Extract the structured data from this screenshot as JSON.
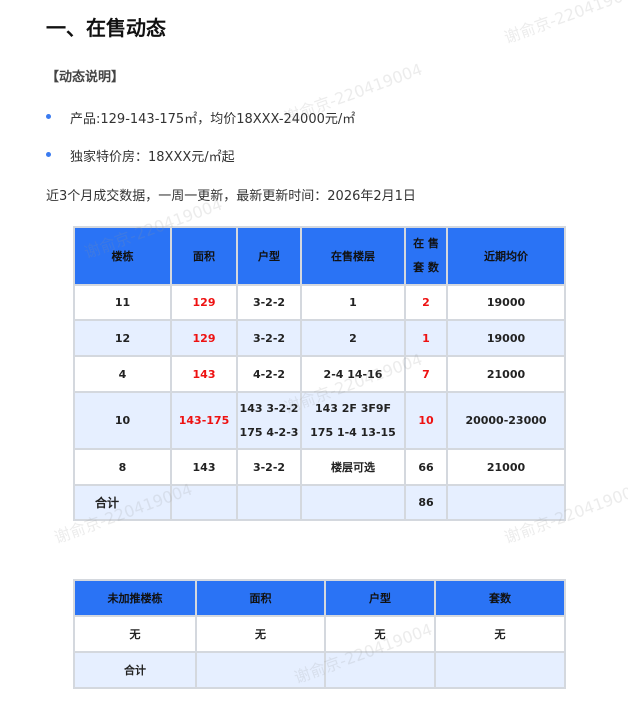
{
  "title": "一、在售动态",
  "note_label": "【动态说明】",
  "bullets": [
    "产品:129-143-175㎡，均价18XXX-24000元/㎡",
    "独家特价房：18XXX元/㎡起"
  ],
  "update_text": "近3个月成交数据，一周一更新，最新更新时间：2026年2月1日",
  "watermark": "谢俞京-220419004",
  "colors": {
    "header_bg": "#2a73f5",
    "alt_row_bg": "#e6efff",
    "highlight": "#ee1111",
    "bullet": "#3a7bf0"
  },
  "sale_table": {
    "headers": [
      "楼栋",
      "面积",
      "户型",
      "在售楼层",
      "在 售\n套 数",
      "近期均价"
    ],
    "rows": [
      {
        "building": "11",
        "area": "129",
        "layout": "3-2-2",
        "floors": "1",
        "units": "2",
        "price": "19000",
        "highlight": true
      },
      {
        "building": "12",
        "area": "129",
        "layout": "3-2-2",
        "floors": "2",
        "units": "1",
        "price": "19000",
        "highlight": true
      },
      {
        "building": "4",
        "area": "143",
        "layout": "4-2-2",
        "floors": "2-4  14-16",
        "units": "7",
        "price": "21000",
        "highlight": true
      },
      {
        "building": "10",
        "area": "143-175",
        "layout": [
          "143 3-2-2",
          "175 4-2-3"
        ],
        "floors": [
          "143 2F 3F9F",
          "175 1-4  13-15"
        ],
        "units": "10",
        "price": "20000-23000",
        "highlight": true
      },
      {
        "building": "8",
        "area": "143",
        "layout": "3-2-2",
        "floors": "楼层可选",
        "units": "66",
        "price": "21000",
        "highlight": false
      }
    ],
    "total": {
      "label": "合计",
      "units": "86"
    }
  },
  "unlisted_table": {
    "headers": [
      "未加推楼栋",
      "面积",
      "户型",
      "套数"
    ],
    "row": [
      "无",
      "无",
      "无",
      "无"
    ],
    "total_label": "合计"
  }
}
